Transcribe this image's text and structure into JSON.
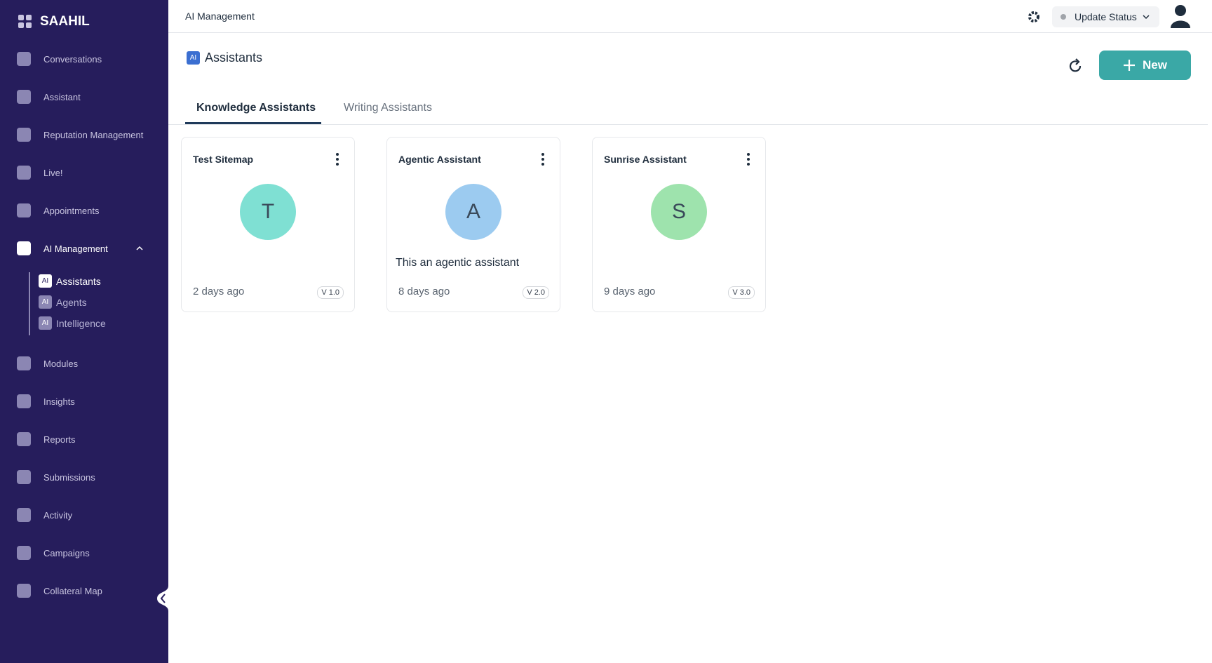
{
  "sidebar": {
    "brand": "SAAHIL",
    "items": [
      "Conversations",
      "Assistant",
      "Reputation Management",
      "Live!",
      "Appointments",
      "AI Management"
    ],
    "sub_items": [
      "Assistants",
      "Agents",
      "Intelligence"
    ],
    "items_after": [
      "Modules",
      "Insights",
      "Reports",
      "Submissions",
      "Activity",
      "Campaigns",
      "Collateral Map"
    ]
  },
  "icon_badge": "AI",
  "header": {
    "breadcrumb": "AI Management",
    "status": "Update Status"
  },
  "page": {
    "title": "Assistants",
    "new_button": "New",
    "tabs": [
      "Knowledge Assistants",
      "Writing Assistants"
    ]
  },
  "cards": [
    {
      "title": "Test Sitemap",
      "initial": "T",
      "avatar_color": "#7fe0d3",
      "description": null,
      "updated": "2 days ago",
      "version": "V 1.0"
    },
    {
      "title": "Agentic Assistant",
      "initial": "A",
      "avatar_color": "#9ccbf0",
      "description": "This an agentic assistant",
      "updated": "8 days ago",
      "version": "V 2.0"
    },
    {
      "title": "Sunrise Assistant",
      "initial": "S",
      "avatar_color": "#9ee3ad",
      "description": null,
      "updated": "9 days ago",
      "version": "V 3.0"
    }
  ]
}
